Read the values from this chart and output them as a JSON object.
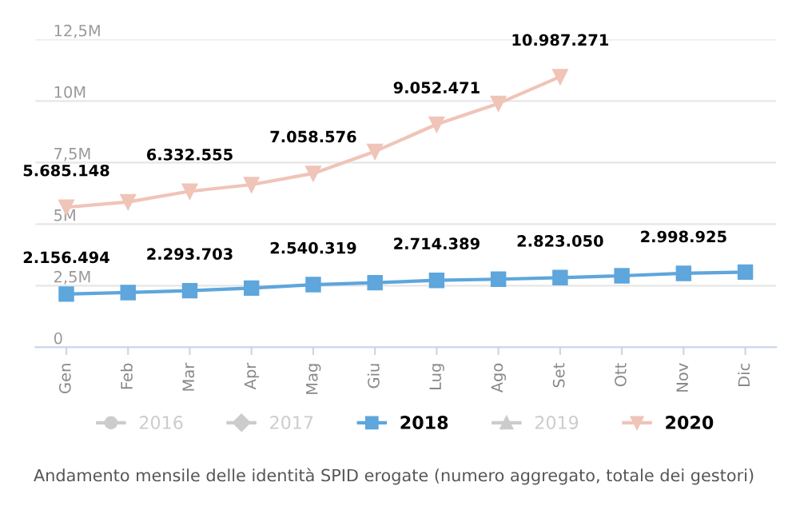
{
  "chart_data": {
    "type": "line",
    "categories": [
      "Gen",
      "Feb",
      "Mar",
      "Apr",
      "Mag",
      "Giu",
      "Lug",
      "Ago",
      "Set",
      "Ott",
      "Nov",
      "Dic"
    ],
    "series": [
      {
        "name": "2016",
        "color": "#cccccc",
        "marker": "circle",
        "values": [
          null,
          null,
          null,
          null,
          null,
          null,
          null,
          null,
          null,
          null,
          null,
          null
        ]
      },
      {
        "name": "2017",
        "color": "#cccccc",
        "marker": "diamond",
        "values": [
          null,
          null,
          null,
          null,
          null,
          null,
          null,
          null,
          null,
          null,
          null,
          null
        ]
      },
      {
        "name": "2018",
        "color": "#5ea6dc",
        "marker": "square",
        "values": [
          2156494,
          2220000,
          2293703,
          2400000,
          2540319,
          2620000,
          2714389,
          2760000,
          2823050,
          2900000,
          2998925,
          3050000
        ],
        "value_labels": [
          "2.156.494",
          null,
          "2.293.703",
          null,
          "2.540.319",
          null,
          "2.714.389",
          null,
          "2.823.050",
          null,
          "2.998.925",
          null
        ]
      },
      {
        "name": "2019",
        "color": "#cccccc",
        "marker": "triangle",
        "values": [
          null,
          null,
          null,
          null,
          null,
          null,
          null,
          null,
          null,
          null,
          null,
          null
        ]
      },
      {
        "name": "2020",
        "color": "#f0c4b8",
        "marker": "triangle_down",
        "values": [
          5685148,
          5900000,
          6332555,
          6600000,
          7058576,
          7950000,
          9052471,
          9900000,
          10987271,
          null,
          null,
          null
        ],
        "value_labels": [
          "5.685.148",
          null,
          "6.332.555",
          null,
          "7.058.576",
          null,
          "9.052.471",
          null,
          "10.987.271",
          null,
          null,
          null
        ]
      }
    ],
    "ylim": [
      0,
      12500000
    ],
    "yticks": [
      {
        "value": 0,
        "label": "0"
      },
      {
        "value": 2500000,
        "label": "2,5M"
      },
      {
        "value": 5000000,
        "label": "5M"
      },
      {
        "value": 7500000,
        "label": "7,5M"
      },
      {
        "value": 10000000,
        "label": "10M"
      },
      {
        "value": 12500000,
        "label": "12,5M"
      }
    ],
    "grid": "y",
    "legend": "bottom",
    "line_style": "solid",
    "annotations": [
      "Andamento mensile delle identità SPID erogate (numero aggregato, totale dei gestori)"
    ]
  }
}
